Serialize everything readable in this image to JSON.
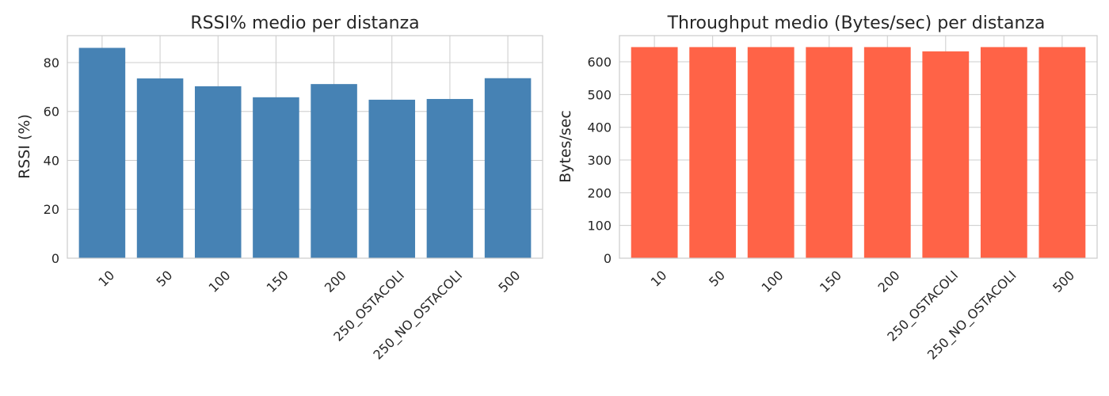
{
  "chart_data": [
    {
      "type": "bar",
      "title": "RSSI% medio per distanza",
      "xlabel": "",
      "ylabel": "RSSI (%)",
      "categories": [
        "10",
        "50",
        "100",
        "150",
        "200",
        "250_OSTACOLI",
        "250_NO_OSTACOLI",
        "500"
      ],
      "values": [
        86,
        73.5,
        70.3,
        65.8,
        71.2,
        64.8,
        65.1,
        73.6
      ],
      "ylim": [
        0,
        91
      ],
      "yticks": [
        0,
        20,
        40,
        60,
        80
      ],
      "color": "#4682b4",
      "grid": true,
      "legend": "none"
    },
    {
      "type": "bar",
      "title": "Throughput medio (Bytes/sec) per distanza",
      "xlabel": "",
      "ylabel": "Bytes/sec",
      "categories": [
        "10",
        "50",
        "100",
        "150",
        "200",
        "250_OSTACOLI",
        "250_NO_OSTACOLI",
        "500"
      ],
      "values": [
        645,
        645,
        645,
        645,
        645,
        632,
        645,
        645
      ],
      "ylim": [
        0,
        680
      ],
      "yticks": [
        0,
        100,
        200,
        300,
        400,
        500,
        600
      ],
      "color": "#ff6347",
      "grid": true,
      "legend": "none"
    }
  ]
}
